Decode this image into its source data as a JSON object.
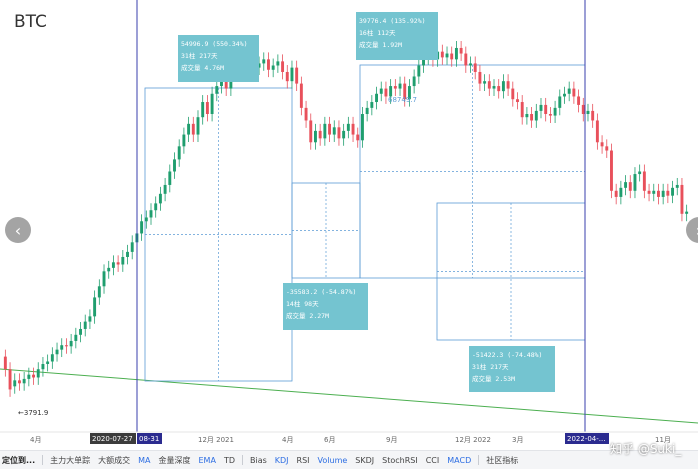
{
  "title": "BTC",
  "toolbar": [
    {
      "label": "定位到...",
      "style": "first"
    },
    {
      "label": "主力大单踪",
      "style": "normal"
    },
    {
      "label": "大额成交",
      "style": "normal"
    },
    {
      "label": "MA",
      "style": "blue"
    },
    {
      "label": "金量深度",
      "style": "normal"
    },
    {
      "label": "EMA",
      "style": "blue"
    },
    {
      "label": "TD",
      "style": "normal"
    },
    {
      "label": "Bias",
      "style": "normal"
    },
    {
      "label": "KDJ",
      "style": "blue"
    },
    {
      "label": "RSI",
      "style": "normal"
    },
    {
      "label": "Volume",
      "style": "blue"
    },
    {
      "label": "SKDJ",
      "style": "normal"
    },
    {
      "label": "StochRSI",
      "style": "normal"
    },
    {
      "label": "CCI",
      "style": "normal"
    },
    {
      "label": "MACD",
      "style": "blue"
    },
    {
      "label": "社区指标",
      "style": "normal"
    }
  ],
  "nav": {
    "left": "‹",
    "right": "›"
  },
  "watermark": "知乎 @Suki_",
  "colors": {
    "up": "#1f9e6e",
    "down": "#e8505b",
    "box": "#5b9bd5",
    "label_bg": "#74c4d0",
    "trend": "#4caf50",
    "cursor": "#3a3fae"
  },
  "chart_data": {
    "type": "candlestick",
    "title": "BTC",
    "x_ticks": [
      "4月",
      "12月 2021",
      "4月",
      "6月",
      "9月",
      "12月 2022",
      "3月",
      "11月"
    ],
    "cursor_labels": [
      "2020-07-27",
      "08-31",
      "2022-04-..."
    ],
    "price_labels": [
      "3791.9",
      "68749.7"
    ],
    "annotations": [
      {
        "lines": [
          "54996.9 (550.34%)",
          "31柱 217天",
          "成交量 4.76M"
        ]
      },
      {
        "lines": [
          "39776.4 (135.92%)",
          "16柱 112天",
          "成交量 1.92M"
        ]
      },
      {
        "lines": [
          "-35583.2 (-54.87%)",
          "14柱 98天",
          "成交量 2.27M"
        ]
      },
      {
        "lines": [
          "-51422.3 (-74.48%)",
          "31柱 217天",
          "成交量 2.53M"
        ]
      }
    ],
    "candles_approx": [
      {
        "o": 5000,
        "c": 4500
      },
      {
        "o": 4500,
        "c": 3800
      },
      {
        "o": 3900,
        "c": 4100
      },
      {
        "o": 4100,
        "c": 4000
      },
      {
        "o": 4000,
        "c": 4150
      },
      {
        "o": 4150,
        "c": 4300
      },
      {
        "o": 4300,
        "c": 4200
      },
      {
        "o": 4200,
        "c": 4500
      },
      {
        "o": 4500,
        "c": 4700
      },
      {
        "o": 4700,
        "c": 4800
      },
      {
        "o": 4800,
        "c": 5100
      },
      {
        "o": 5100,
        "c": 5300
      },
      {
        "o": 5300,
        "c": 5500
      },
      {
        "o": 5500,
        "c": 5450
      },
      {
        "o": 5450,
        "c": 5700
      },
      {
        "o": 5700,
        "c": 6000
      },
      {
        "o": 6000,
        "c": 6300
      },
      {
        "o": 6300,
        "c": 6700
      },
      {
        "o": 6700,
        "c": 7000
      },
      {
        "o": 7000,
        "c": 8200
      },
      {
        "o": 8200,
        "c": 9000
      },
      {
        "o": 9000,
        "c": 10200
      },
      {
        "o": 10200,
        "c": 10500
      },
      {
        "o": 10500,
        "c": 11000
      },
      {
        "o": 11000,
        "c": 10800
      },
      {
        "o": 10800,
        "c": 11500
      },
      {
        "o": 11500,
        "c": 12000
      },
      {
        "o": 12000,
        "c": 13000
      },
      {
        "o": 13000,
        "c": 14000
      },
      {
        "o": 14000,
        "c": 15500
      },
      {
        "o": 15500,
        "c": 16000
      },
      {
        "o": 16000,
        "c": 17000
      },
      {
        "o": 17000,
        "c": 18000
      },
      {
        "o": 18000,
        "c": 19500
      },
      {
        "o": 19500,
        "c": 21000
      },
      {
        "o": 21000,
        "c": 23500
      },
      {
        "o": 23500,
        "c": 26000
      },
      {
        "o": 26000,
        "c": 29000
      },
      {
        "o": 29000,
        "c": 32000
      },
      {
        "o": 32000,
        "c": 35000
      },
      {
        "o": 35000,
        "c": 32000
      },
      {
        "o": 32000,
        "c": 37000
      },
      {
        "o": 37000,
        "c": 42000
      },
      {
        "o": 42000,
        "c": 38000
      },
      {
        "o": 38000,
        "c": 45000
      },
      {
        "o": 45000,
        "c": 48000
      },
      {
        "o": 48000,
        "c": 51000
      },
      {
        "o": 51000,
        "c": 47000
      },
      {
        "o": 47000,
        "c": 55000
      },
      {
        "o": 55000,
        "c": 58000
      },
      {
        "o": 58000,
        "c": 56000
      },
      {
        "o": 56000,
        "c": 59000
      },
      {
        "o": 59000,
        "c": 60000
      },
      {
        "o": 60000,
        "c": 56000
      },
      {
        "o": 56000,
        "c": 58000
      },
      {
        "o": 58000,
        "c": 60000
      },
      {
        "o": 60000,
        "c": 55000
      },
      {
        "o": 55000,
        "c": 57000
      },
      {
        "o": 57000,
        "c": 59000
      },
      {
        "o": 59000,
        "c": 54000
      },
      {
        "o": 54000,
        "c": 50000
      },
      {
        "o": 50000,
        "c": 56000
      },
      {
        "o": 56000,
        "c": 49000
      },
      {
        "o": 49000,
        "c": 40000
      },
      {
        "o": 40000,
        "c": 36000
      },
      {
        "o": 36000,
        "c": 30000
      },
      {
        "o": 30000,
        "c": 33000
      },
      {
        "o": 33000,
        "c": 31000
      },
      {
        "o": 31000,
        "c": 35000
      },
      {
        "o": 35000,
        "c": 32000
      },
      {
        "o": 32000,
        "c": 34000
      },
      {
        "o": 34000,
        "c": 31000
      },
      {
        "o": 31000,
        "c": 33000
      },
      {
        "o": 33000,
        "c": 35000
      },
      {
        "o": 35000,
        "c": 32000
      },
      {
        "o": 32000,
        "c": 30500
      },
      {
        "o": 30500,
        "c": 38000
      },
      {
        "o": 38000,
        "c": 40000
      },
      {
        "o": 40000,
        "c": 42000
      },
      {
        "o": 42000,
        "c": 45000
      },
      {
        "o": 45000,
        "c": 47000
      },
      {
        "o": 47000,
        "c": 44000
      },
      {
        "o": 44000,
        "c": 48000
      },
      {
        "o": 48000,
        "c": 47000
      },
      {
        "o": 47000,
        "c": 49000
      },
      {
        "o": 49000,
        "c": 43000
      },
      {
        "o": 43000,
        "c": 48000
      },
      {
        "o": 48000,
        "c": 52000
      },
      {
        "o": 52000,
        "c": 57000
      },
      {
        "o": 57000,
        "c": 61000
      },
      {
        "o": 61000,
        "c": 62000
      },
      {
        "o": 62000,
        "c": 60000
      },
      {
        "o": 60000,
        "c": 64000
      },
      {
        "o": 64000,
        "c": 61000
      },
      {
        "o": 61000,
        "c": 63000
      },
      {
        "o": 63000,
        "c": 60000
      },
      {
        "o": 60000,
        "c": 66000
      },
      {
        "o": 66000,
        "c": 63000
      },
      {
        "o": 63000,
        "c": 57000
      },
      {
        "o": 57000,
        "c": 58000
      },
      {
        "o": 58000,
        "c": 54000
      },
      {
        "o": 54000,
        "c": 49000
      },
      {
        "o": 49000,
        "c": 50000
      },
      {
        "o": 50000,
        "c": 47000
      },
      {
        "o": 47000,
        "c": 48000
      },
      {
        "o": 48000,
        "c": 46000
      },
      {
        "o": 46000,
        "c": 50000
      },
      {
        "o": 50000,
        "c": 47000
      },
      {
        "o": 47000,
        "c": 43000
      },
      {
        "o": 43000,
        "c": 42000
      },
      {
        "o": 42000,
        "c": 37000
      },
      {
        "o": 37000,
        "c": 38000
      },
      {
        "o": 38000,
        "c": 36000
      },
      {
        "o": 36000,
        "c": 39000
      },
      {
        "o": 39000,
        "c": 41000
      },
      {
        "o": 41000,
        "c": 38000
      },
      {
        "o": 38000,
        "c": 37500
      },
      {
        "o": 37500,
        "c": 40000
      },
      {
        "o": 40000,
        "c": 44000
      },
      {
        "o": 44000,
        "c": 45000
      },
      {
        "o": 45000,
        "c": 47000
      },
      {
        "o": 47000,
        "c": 44000
      },
      {
        "o": 44000,
        "c": 41000
      },
      {
        "o": 41000,
        "c": 38000
      },
      {
        "o": 38000,
        "c": 39000
      },
      {
        "o": 39000,
        "c": 36000
      },
      {
        "o": 36000,
        "c": 30000
      },
      {
        "o": 30000,
        "c": 29000
      },
      {
        "o": 29000,
        "c": 28000
      },
      {
        "o": 28000,
        "c": 20000
      },
      {
        "o": 20000,
        "c": 19000
      },
      {
        "o": 19000,
        "c": 20500
      },
      {
        "o": 20500,
        "c": 21500
      },
      {
        "o": 21500,
        "c": 20000
      },
      {
        "o": 20000,
        "c": 23000
      },
      {
        "o": 23000,
        "c": 23500
      },
      {
        "o": 23500,
        "c": 20000
      },
      {
        "o": 20000,
        "c": 19500
      },
      {
        "o": 19500,
        "c": 20000
      },
      {
        "o": 20000,
        "c": 19000
      },
      {
        "o": 19000,
        "c": 20000
      },
      {
        "o": 20000,
        "c": 19200
      },
      {
        "o": 19200,
        "c": 20500
      },
      {
        "o": 20500,
        "c": 21000
      },
      {
        "o": 21000,
        "c": 16500
      },
      {
        "o": 16500,
        "c": 16800
      }
    ]
  }
}
